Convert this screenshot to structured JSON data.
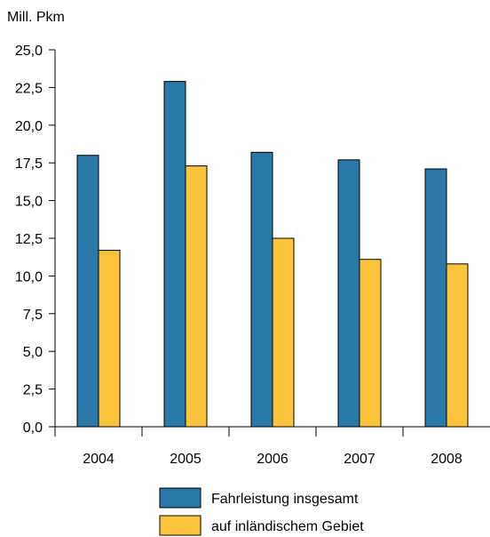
{
  "chart_data": {
    "type": "bar",
    "ylabel": "Mill. Pkm",
    "categories": [
      "2004",
      "2005",
      "2006",
      "2007",
      "2008"
    ],
    "ylim": [
      0,
      25
    ],
    "ytick_step": 2.5,
    "ytick_labels": [
      "0,0",
      "2,5",
      "5,0",
      "7,5",
      "10,0",
      "12,5",
      "15,0",
      "17,5",
      "20,0",
      "22,5",
      "25,0"
    ],
    "grid": false,
    "legend_position": "bottom-center",
    "series": [
      {
        "name": "Fahrleistung insgesamt",
        "color": "#2878a8",
        "values": [
          18.0,
          22.9,
          18.2,
          17.7,
          17.1
        ]
      },
      {
        "name": "auf inländischem Gebiet",
        "color": "#fcc33c",
        "values": [
          11.7,
          17.3,
          12.5,
          11.1,
          10.8
        ]
      }
    ]
  }
}
